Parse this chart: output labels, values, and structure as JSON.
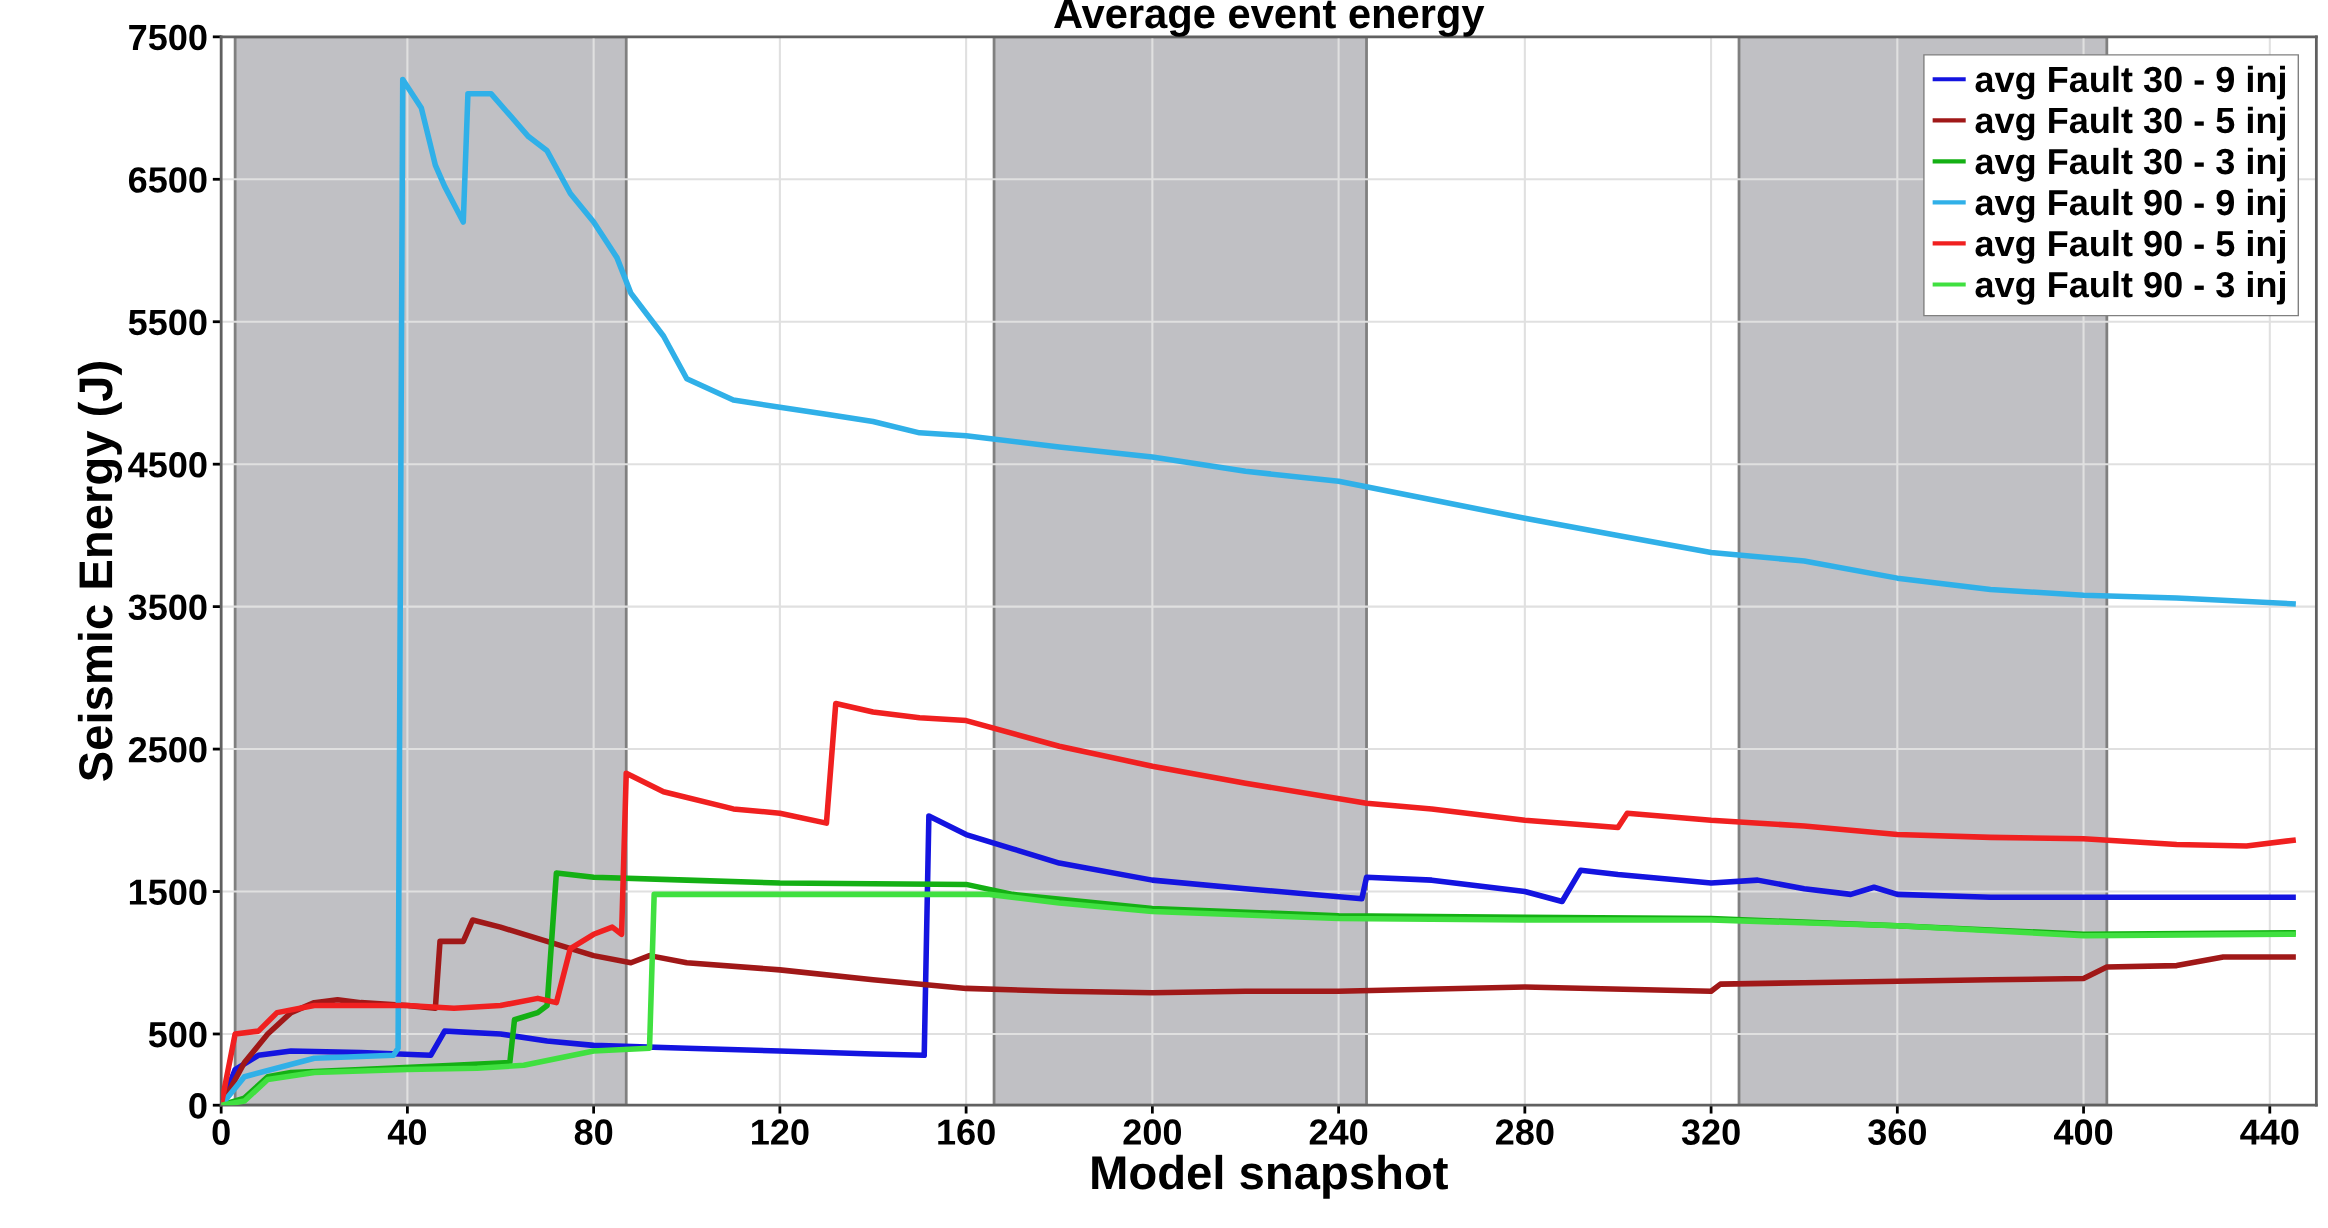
{
  "chart_data": {
    "type": "line",
    "title": "Average event energy",
    "xlabel": "Model snapshot",
    "ylabel": "Seismic Energy (J)",
    "xlim": [
      0,
      450
    ],
    "xticks": [
      0,
      40,
      80,
      120,
      160,
      200,
      240,
      280,
      320,
      360,
      400,
      440
    ],
    "ylim": [
      0,
      7500
    ],
    "yticks": [
      0,
      500,
      1500,
      2500,
      3500,
      4500,
      5500,
      6500,
      7500
    ],
    "grid": true,
    "legend": "top right",
    "line_style": "solid",
    "marker": "none",
    "bands": [
      {
        "axis": "x",
        "from": 3,
        "to": 87,
        "color": "#c0c0c4"
      },
      {
        "axis": "x",
        "from": 166,
        "to": 246,
        "color": "#c0c0c4"
      },
      {
        "axis": "x",
        "from": 326,
        "to": 405,
        "color": "#c0c0c4"
      }
    ],
    "series": [
      {
        "name": "avg Fault 30 - 9 inj",
        "color": "#1414e0",
        "x": [
          0,
          3,
          8,
          15,
          30,
          45,
          48,
          60,
          70,
          80,
          100,
          120,
          140,
          151,
          152,
          160,
          170,
          180,
          200,
          220,
          245,
          246,
          260,
          280,
          288,
          292,
          300,
          320,
          330,
          340,
          350,
          355,
          360,
          380,
          400,
          445
        ],
        "values": [
          0,
          250,
          350,
          380,
          370,
          350,
          520,
          500,
          450,
          420,
          400,
          380,
          360,
          350,
          2030,
          1900,
          1800,
          1700,
          1580,
          1520,
          1450,
          1600,
          1580,
          1500,
          1430,
          1650,
          1620,
          1560,
          1580,
          1520,
          1480,
          1530,
          1480,
          1460,
          1460,
          1460
        ]
      },
      {
        "name": "avg Fault 30 - 5 inj",
        "color": "#a01818",
        "x": [
          0,
          5,
          10,
          15,
          20,
          25,
          30,
          40,
          46,
          47,
          52,
          54,
          60,
          70,
          80,
          88,
          92,
          100,
          120,
          140,
          160,
          180,
          200,
          220,
          240,
          280,
          320,
          322,
          340,
          360,
          380,
          400,
          405,
          420,
          430,
          445
        ],
        "values": [
          0,
          300,
          500,
          650,
          720,
          740,
          720,
          700,
          680,
          1150,
          1150,
          1300,
          1250,
          1150,
          1050,
          1000,
          1050,
          1000,
          950,
          880,
          820,
          800,
          790,
          800,
          800,
          830,
          800,
          850,
          860,
          870,
          880,
          890,
          970,
          980,
          1040,
          1040
        ]
      },
      {
        "name": "avg Fault 30 - 3 inj",
        "color": "#14b014",
        "x": [
          0,
          5,
          10,
          15,
          30,
          50,
          62,
          63,
          68,
          70,
          72,
          80,
          100,
          120,
          160,
          170,
          200,
          240,
          280,
          320,
          360,
          400,
          445
        ],
        "values": [
          0,
          50,
          200,
          230,
          250,
          280,
          300,
          600,
          650,
          700,
          1630,
          1600,
          1580,
          1560,
          1550,
          1480,
          1380,
          1330,
          1320,
          1310,
          1260,
          1200,
          1210
        ]
      },
      {
        "name": "avg Fault 90 - 9 inj",
        "color": "#30b0e8",
        "x": [
          0,
          5,
          20,
          37,
          38,
          39,
          41,
          43,
          46,
          48,
          52,
          53,
          58,
          62,
          66,
          70,
          75,
          80,
          85,
          88,
          95,
          100,
          110,
          120,
          130,
          140,
          150,
          160,
          180,
          200,
          220,
          240,
          260,
          280,
          300,
          320,
          340,
          360,
          380,
          400,
          420,
          445
        ],
        "values": [
          0,
          200,
          330,
          350,
          400,
          7200,
          7100,
          7000,
          6600,
          6450,
          6200,
          7100,
          7100,
          6950,
          6800,
          6700,
          6400,
          6200,
          5950,
          5700,
          5400,
          5100,
          4950,
          4900,
          4850,
          4800,
          4720,
          4700,
          4620,
          4550,
          4450,
          4380,
          4250,
          4120,
          4000,
          3880,
          3820,
          3700,
          3620,
          3580,
          3560,
          3520
        ]
      },
      {
        "name": "avg Fault 90 - 5 inj",
        "color": "#f02020",
        "x": [
          0,
          3,
          8,
          12,
          20,
          30,
          40,
          50,
          60,
          68,
          72,
          75,
          80,
          84,
          86,
          87,
          95,
          110,
          120,
          130,
          132,
          140,
          150,
          160,
          180,
          200,
          220,
          246,
          260,
          280,
          300,
          302,
          320,
          340,
          360,
          380,
          400,
          420,
          435,
          445
        ],
        "values": [
          0,
          500,
          520,
          650,
          700,
          700,
          700,
          680,
          700,
          750,
          720,
          1100,
          1200,
          1250,
          1200,
          2330,
          2200,
          2080,
          2050,
          1980,
          2820,
          2760,
          2720,
          2700,
          2520,
          2380,
          2260,
          2120,
          2080,
          2000,
          1950,
          2050,
          2000,
          1960,
          1900,
          1880,
          1870,
          1830,
          1820,
          1860
        ]
      },
      {
        "name": "avg Fault 90 - 3 inj",
        "color": "#40e040",
        "x": [
          0,
          5,
          10,
          20,
          40,
          55,
          65,
          80,
          92,
          93,
          100,
          140,
          165,
          180,
          200,
          240,
          280,
          320,
          360,
          400,
          445
        ],
        "values": [
          0,
          30,
          180,
          230,
          250,
          260,
          280,
          380,
          400,
          1480,
          1480,
          1480,
          1480,
          1420,
          1360,
          1310,
          1300,
          1300,
          1260,
          1190,
          1200
        ]
      }
    ]
  }
}
